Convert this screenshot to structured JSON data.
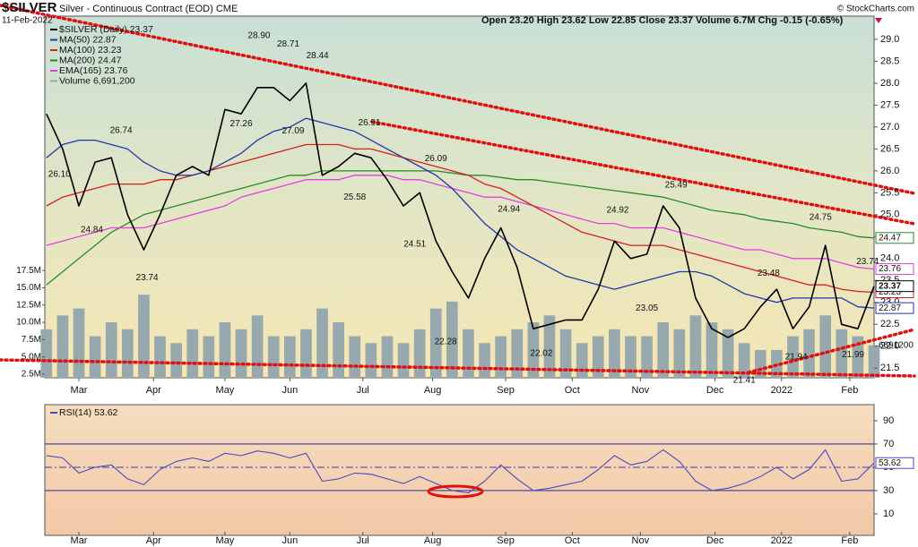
{
  "header": {
    "symbol": "$SILVER",
    "title": "Silver - Continuous Contract (EOD) CME",
    "date": "11-Feb-2022",
    "quote": "Open 23.20 High 23.62 Low 22.85 Close 23.37 Volume 6.7M Chg -0.15 (-0.65%)",
    "credit": "© StockCharts.com"
  },
  "chart_data": [
    {
      "type": "line",
      "xlim": [
        -0.1,
        51
      ],
      "xticks": [
        {
          "value": 2,
          "label": "Mar"
        },
        {
          "value": 6.6,
          "label": "Apr"
        },
        {
          "value": 11,
          "label": "May"
        },
        {
          "value": 15,
          "label": "Jun"
        },
        {
          "value": 19.5,
          "label": "Jul"
        },
        {
          "value": 23.8,
          "label": "Aug"
        },
        {
          "value": 28.3,
          "label": "Sep"
        },
        {
          "value": 32.4,
          "label": "Oct"
        },
        {
          "value": 36.6,
          "label": "Nov"
        },
        {
          "value": 41.2,
          "label": "Dec"
        },
        {
          "value": 45.3,
          "label": "2022"
        },
        {
          "value": 49.5,
          "label": "Feb"
        }
      ],
      "ylim": [
        21.28,
        29.53
      ],
      "yticks": [
        21.5,
        {
          "value": 22,
          "label": "22.0"
        },
        22.5,
        {
          "value": 23,
          "label": "23.0"
        },
        23.5,
        {
          "value": 24,
          "label": "24.0"
        },
        24.5,
        {
          "value": 25,
          "label": "25.0"
        },
        25.5,
        {
          "value": 26,
          "label": "26.0"
        },
        26.5,
        {
          "value": 27,
          "label": "27.0"
        },
        27.5,
        {
          "value": 28,
          "label": "28.0"
        },
        28.5,
        {
          "value": 29,
          "label": "29.0"
        }
      ],
      "y2lim": [
        1.98,
        54.3
      ],
      "y2ticks": [
        {
          "value": 2.5,
          "label": "2.5M"
        },
        {
          "value": 5,
          "label": "5.0M"
        },
        {
          "value": 7.5,
          "label": "7.5M"
        },
        {
          "value": 10,
          "label": "10.0M"
        },
        {
          "value": 12.5,
          "label": "12.5M"
        },
        {
          "value": 15,
          "label": "15.0M"
        },
        {
          "value": 17.5,
          "label": "17.5M"
        }
      ],
      "series": [
        {
          "name": "Volume",
          "legend": "Volume 6,691,200",
          "type": "bar",
          "axis": "y2",
          "color": "#97a9ad",
          "tag": "6691200",
          "values": [
            9,
            11,
            12,
            8,
            10,
            9,
            14,
            8,
            7,
            9,
            8,
            10,
            9,
            11,
            8,
            8,
            9,
            12,
            10,
            8,
            7,
            8,
            7,
            9,
            12,
            13,
            9,
            7,
            8,
            9,
            10,
            11,
            9,
            7,
            8,
            9,
            8,
            8,
            10,
            9,
            11,
            10,
            9,
            7,
            6,
            6,
            8,
            9,
            11,
            9,
            8,
            6.6912
          ]
        },
        {
          "name": "MA(200)",
          "legend": "MA(200) 24.47",
          "color": "#2a8a2a",
          "tag": "24.47",
          "values": [
            23.4,
            23.7,
            24.0,
            24.3,
            24.6,
            24.8,
            25.0,
            25.1,
            25.2,
            25.3,
            25.4,
            25.5,
            25.6,
            25.7,
            25.8,
            25.9,
            25.9,
            26.0,
            26.0,
            26.0,
            26.0,
            26.0,
            26.0,
            26.0,
            26.0,
            25.95,
            25.9,
            25.9,
            25.85,
            25.8,
            25.8,
            25.75,
            25.7,
            25.65,
            25.6,
            25.55,
            25.5,
            25.45,
            25.4,
            25.3,
            25.2,
            25.1,
            25.05,
            25.0,
            24.9,
            24.85,
            24.8,
            24.7,
            24.65,
            24.6,
            24.5,
            24.47
          ]
        },
        {
          "name": "EMA(165)",
          "legend": "EMA(165) 23.76",
          "color": "#e040e0",
          "tag": "23.76",
          "values": [
            24.3,
            24.4,
            24.5,
            24.6,
            24.7,
            24.7,
            24.7,
            24.8,
            24.9,
            25.0,
            25.1,
            25.2,
            25.4,
            25.5,
            25.6,
            25.7,
            25.8,
            25.8,
            25.8,
            25.9,
            25.9,
            25.9,
            25.8,
            25.8,
            25.7,
            25.6,
            25.5,
            25.4,
            25.4,
            25.3,
            25.2,
            25.1,
            25.0,
            24.9,
            24.8,
            24.8,
            24.7,
            24.7,
            24.7,
            24.6,
            24.5,
            24.4,
            24.3,
            24.2,
            24.2,
            24.1,
            24.0,
            24.0,
            24.0,
            23.9,
            23.8,
            23.76
          ]
        },
        {
          "name": "MA(100)",
          "legend": "MA(100) 23.23",
          "color": "#d42020",
          "tag": "23.23",
          "values": [
            25.2,
            25.4,
            25.5,
            25.6,
            25.7,
            25.7,
            25.7,
            25.8,
            25.8,
            25.9,
            26.0,
            26.1,
            26.2,
            26.3,
            26.4,
            26.5,
            26.6,
            26.6,
            26.6,
            26.5,
            26.5,
            26.4,
            26.3,
            26.2,
            26.1,
            26.0,
            25.9,
            25.7,
            25.6,
            25.4,
            25.2,
            25.0,
            24.8,
            24.6,
            24.5,
            24.4,
            24.3,
            24.3,
            24.3,
            24.2,
            24.1,
            24.0,
            23.9,
            23.8,
            23.7,
            23.6,
            23.5,
            23.4,
            23.4,
            23.3,
            23.25,
            23.23
          ]
        },
        {
          "name": "MA(50)",
          "legend": "MA(50) 22.87",
          "color": "#2038a8",
          "tag": "22.87",
          "values": [
            26.3,
            26.6,
            26.7,
            26.7,
            26.6,
            26.5,
            26.2,
            26.0,
            25.9,
            25.9,
            26.0,
            26.2,
            26.4,
            26.7,
            26.9,
            27.0,
            27.2,
            27.1,
            27.0,
            26.9,
            26.7,
            26.5,
            26.3,
            26.1,
            25.9,
            25.6,
            25.2,
            24.8,
            24.5,
            24.2,
            24.0,
            23.8,
            23.6,
            23.5,
            23.4,
            23.3,
            23.4,
            23.5,
            23.6,
            23.7,
            23.7,
            23.6,
            23.4,
            23.2,
            23.1,
            23.0,
            23.1,
            23.1,
            23.1,
            23.1,
            22.9,
            22.87
          ]
        },
        {
          "name": "$SILVER (Daily)",
          "legend": "$SILVER (Daily) 23.37",
          "color": "#000000",
          "tag": "23.37",
          "values": [
            27.3,
            26.5,
            25.2,
            26.2,
            26.3,
            25.0,
            24.2,
            25.0,
            25.9,
            26.1,
            25.9,
            27.4,
            27.3,
            27.9,
            27.9,
            27.6,
            28.0,
            25.9,
            26.1,
            26.4,
            26.3,
            25.8,
            25.2,
            25.5,
            24.4,
            23.7,
            23.1,
            24.0,
            24.7,
            23.8,
            22.4,
            22.5,
            22.6,
            22.6,
            23.3,
            24.4,
            24.0,
            24.1,
            25.2,
            24.7,
            23.1,
            22.4,
            22.2,
            22.4,
            22.9,
            23.3,
            22.4,
            22.9,
            24.3,
            22.5,
            22.4,
            23.37
          ]
        }
      ],
      "annotations": [
        {
          "label": "26.10",
          "value": 26.1,
          "x": 0.8,
          "side": "below"
        },
        {
          "label": "24.84",
          "value": 24.84,
          "x": 2.8,
          "side": "below"
        },
        {
          "label": "26.74",
          "value": 26.74,
          "x": 4.6,
          "side": "above"
        },
        {
          "label": "23.74",
          "value": 23.74,
          "x": 6.2,
          "side": "below"
        },
        {
          "label": "27.26",
          "value": 27.26,
          "x": 12.0,
          "side": "below"
        },
        {
          "label": "28.90",
          "value": 28.9,
          "x": 13.1,
          "side": "above"
        },
        {
          "label": "28.71",
          "value": 28.71,
          "x": 14.9,
          "side": "above"
        },
        {
          "label": "27.09",
          "value": 27.09,
          "x": 15.2,
          "side": "below"
        },
        {
          "label": "28.44",
          "value": 28.44,
          "x": 16.7,
          "side": "above"
        },
        {
          "label": "25.58",
          "value": 25.58,
          "x": 19.0,
          "side": "below"
        },
        {
          "label": "26.91",
          "value": 26.91,
          "x": 19.9,
          "side": "above"
        },
        {
          "label": "24.51",
          "value": 24.51,
          "x": 22.7,
          "side": "below"
        },
        {
          "label": "26.09",
          "value": 26.09,
          "x": 24.0,
          "side": "above"
        },
        {
          "label": "22.28",
          "value": 22.28,
          "x": 24.6,
          "side": "below"
        },
        {
          "label": "24.94",
          "value": 24.94,
          "x": 28.5,
          "side": "above"
        },
        {
          "label": "22.02",
          "value": 22.02,
          "x": 30.5,
          "side": "below"
        },
        {
          "label": "24.92",
          "value": 24.92,
          "x": 35.2,
          "side": "above"
        },
        {
          "label": "23.05",
          "value": 23.05,
          "x": 37.0,
          "side": "below"
        },
        {
          "label": "25.49",
          "value": 25.49,
          "x": 38.8,
          "side": "above"
        },
        {
          "label": "21.41",
          "value": 21.41,
          "x": 43.0,
          "side": "below"
        },
        {
          "label": "23.48",
          "value": 23.48,
          "x": 44.5,
          "side": "above"
        },
        {
          "label": "21.94",
          "value": 21.94,
          "x": 46.2,
          "side": "below"
        },
        {
          "label": "24.75",
          "value": 24.75,
          "x": 47.7,
          "side": "above"
        },
        {
          "label": "21.99",
          "value": 21.99,
          "x": 49.7,
          "side": "below"
        },
        {
          "label": "23.74",
          "value": 23.74,
          "x": 50.6,
          "side": "above"
        }
      ]
    },
    {
      "type": "line",
      "ylim": [
        -8.5,
        103.8
      ],
      "yticks": [
        10,
        30,
        50,
        70,
        90
      ],
      "bands": [
        30,
        70
      ],
      "midline": 50,
      "series": [
        {
          "name": "RSI(14)",
          "legend": "RSI(14) 53.62",
          "color": "#4a4ac0",
          "tag": "53.62",
          "values": [
            60,
            58,
            45,
            50,
            52,
            40,
            35,
            48,
            55,
            58,
            55,
            62,
            60,
            64,
            62,
            58,
            62,
            38,
            40,
            45,
            44,
            40,
            36,
            42,
            36,
            30,
            28,
            38,
            52,
            40,
            30,
            32,
            35,
            38,
            48,
            60,
            52,
            55,
            65,
            55,
            38,
            30,
            32,
            36,
            42,
            50,
            40,
            48,
            65,
            38,
            40,
            53.62
          ]
        }
      ]
    }
  ]
}
